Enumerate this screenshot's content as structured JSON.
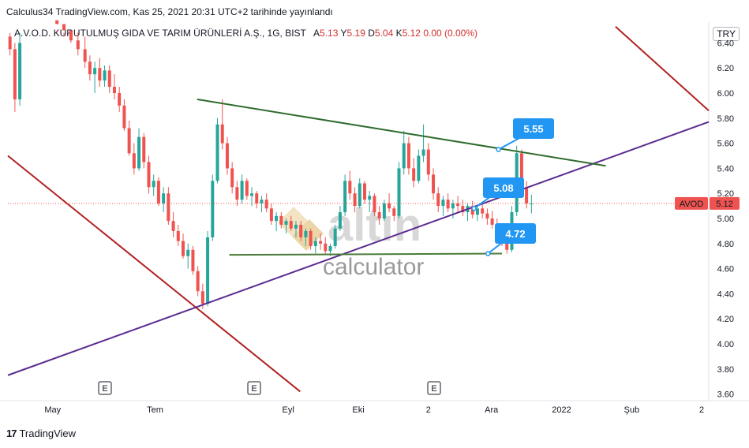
{
  "header": {
    "publisher": "Calculus34 TradingView.com, Kas 25, 2021 20:31 UTC+2 tarihinde yayınlandı",
    "symbol_title": "A.V.O.D. KURUTULMUŞ GIDA VE TARIM ÜRÜNLERİ A.Ş., 1G, BIST",
    "ohlc": {
      "a_label": "A",
      "a": "5.13",
      "y_label": "Y",
      "y": "5.19",
      "d_label": "D",
      "d": "5.04",
      "k_label": "K",
      "k": "5.12",
      "change": "0.00 (0.00%)"
    },
    "currency": "TRY"
  },
  "footer": {
    "logo": "17",
    "brand": "TradingView"
  },
  "watermark": {
    "brand": "altın",
    "sub": "calculator"
  },
  "chart_data": {
    "type": "candlestick",
    "ylim": [
      3.55,
      6.48
    ],
    "y_ticks": [
      "6.40",
      "6.20",
      "6.00",
      "5.80",
      "5.60",
      "5.40",
      "5.20",
      "5.00",
      "4.80",
      "4.60",
      "4.40",
      "4.20",
      "4.00",
      "3.80",
      "3.60"
    ],
    "x_ticks": [
      {
        "label": "May",
        "x": 0.02
      },
      {
        "label": "Tem",
        "x": 0.21
      },
      {
        "label": "Eyl",
        "x": 0.4
      },
      {
        "label": "Eki",
        "x": 0.5
      },
      {
        "label": "2",
        "x": 0.6
      },
      {
        "label": "Ara",
        "x": 0.69
      },
      {
        "label": "2022",
        "x": 0.79
      },
      {
        "label": "Şub",
        "x": 0.89
      },
      {
        "label": "2",
        "x": 0.99
      }
    ],
    "last_price": {
      "symbol": "AVOD",
      "value": "5.12"
    },
    "callouts": [
      "5.55",
      "5.08",
      "4.72"
    ],
    "events": [
      "E",
      "E",
      "E"
    ],
    "colors": {
      "up": "#26a69a",
      "down": "#ef5350",
      "resistance": "#2e6b2e",
      "support_up": "#5b2d90",
      "downtrend": "#b22222",
      "support_flat": "#4a7c3a",
      "callout": "#2196f3"
    },
    "grid": false,
    "candles": [
      [
        0.003,
        6.45,
        6.52,
        6.3,
        6.35
      ],
      [
        0.01,
        6.35,
        6.4,
        5.85,
        5.95
      ],
      [
        0.017,
        5.95,
        6.6,
        5.9,
        6.4
      ],
      [
        0.07,
        6.6,
        6.7,
        6.5,
        6.55
      ],
      [
        0.08,
        6.55,
        6.6,
        6.45,
        6.5
      ],
      [
        0.09,
        6.5,
        6.55,
        6.4,
        6.42
      ],
      [
        0.1,
        6.42,
        6.5,
        6.3,
        6.35
      ],
      [
        0.11,
        6.35,
        6.45,
        6.2,
        6.25
      ],
      [
        0.117,
        6.25,
        6.3,
        6.1,
        6.15
      ],
      [
        0.124,
        6.15,
        6.25,
        6.0,
        6.2
      ],
      [
        0.131,
        6.2,
        6.28,
        6.05,
        6.1
      ],
      [
        0.138,
        6.1,
        6.22,
        6.05,
        6.18
      ],
      [
        0.145,
        6.18,
        6.22,
        6.0,
        6.05
      ],
      [
        0.152,
        6.05,
        6.15,
        5.95,
        6.0
      ],
      [
        0.159,
        6.0,
        6.05,
        5.85,
        5.9
      ],
      [
        0.166,
        5.9,
        5.95,
        5.7,
        5.72
      ],
      [
        0.173,
        5.72,
        5.78,
        5.5,
        5.52
      ],
      [
        0.18,
        5.52,
        5.6,
        5.35,
        5.4
      ],
      [
        0.187,
        5.4,
        5.72,
        5.38,
        5.65
      ],
      [
        0.194,
        5.65,
        5.68,
        5.4,
        5.45
      ],
      [
        0.201,
        5.45,
        5.5,
        5.2,
        5.25
      ],
      [
        0.208,
        5.25,
        5.35,
        5.18,
        5.3
      ],
      [
        0.215,
        5.3,
        5.33,
        5.1,
        5.12
      ],
      [
        0.222,
        5.12,
        5.25,
        5.05,
        5.2
      ],
      [
        0.229,
        5.2,
        5.25,
        4.95,
        4.98
      ],
      [
        0.236,
        4.98,
        5.05,
        4.85,
        4.9
      ],
      [
        0.243,
        4.9,
        4.95,
        4.78,
        4.82
      ],
      [
        0.25,
        4.82,
        4.88,
        4.68,
        4.7
      ],
      [
        0.257,
        4.7,
        4.8,
        4.6,
        4.75
      ],
      [
        0.264,
        4.75,
        4.78,
        4.55,
        4.58
      ],
      [
        0.271,
        4.58,
        4.62,
        4.38,
        4.42
      ],
      [
        0.278,
        4.42,
        4.48,
        4.28,
        4.32
      ],
      [
        0.285,
        4.32,
        4.9,
        4.3,
        4.85
      ],
      [
        0.292,
        4.85,
        5.35,
        4.82,
        5.3
      ],
      [
        0.299,
        5.3,
        5.8,
        5.28,
        5.75
      ],
      [
        0.306,
        5.75,
        5.95,
        5.55,
        5.6
      ],
      [
        0.313,
        5.6,
        5.65,
        5.35,
        5.4
      ],
      [
        0.32,
        5.4,
        5.45,
        5.2,
        5.25
      ],
      [
        0.327,
        5.25,
        5.3,
        5.1,
        5.15
      ],
      [
        0.334,
        5.15,
        5.35,
        5.12,
        5.3
      ],
      [
        0.341,
        5.3,
        5.32,
        5.15,
        5.18
      ],
      [
        0.348,
        5.18,
        5.25,
        5.1,
        5.2
      ],
      [
        0.355,
        5.2,
        5.22,
        5.08,
        5.12
      ],
      [
        0.362,
        5.12,
        5.18,
        5.05,
        5.15
      ],
      [
        0.369,
        5.15,
        5.2,
        5.05,
        5.08
      ],
      [
        0.376,
        5.08,
        5.12,
        4.95,
        4.98
      ],
      [
        0.383,
        4.98,
        5.05,
        4.9,
        5.02
      ],
      [
        0.39,
        5.02,
        5.05,
        4.92,
        4.95
      ],
      [
        0.397,
        4.95,
        5.0,
        4.88,
        4.98
      ],
      [
        0.404,
        4.98,
        5.02,
        4.9,
        4.92
      ],
      [
        0.411,
        4.92,
        4.98,
        4.85,
        4.95
      ],
      [
        0.418,
        4.95,
        4.98,
        4.82,
        4.85
      ],
      [
        0.425,
        4.85,
        4.92,
        4.78,
        4.9
      ],
      [
        0.432,
        4.9,
        4.92,
        4.75,
        4.78
      ],
      [
        0.439,
        4.78,
        4.85,
        4.72,
        4.82
      ],
      [
        0.446,
        4.82,
        4.88,
        4.75,
        4.8
      ],
      [
        0.453,
        4.8,
        4.85,
        4.72,
        4.74
      ],
      [
        0.46,
        4.74,
        4.8,
        4.7,
        4.78
      ],
      [
        0.467,
        4.78,
        4.95,
        4.76,
        4.92
      ],
      [
        0.474,
        4.92,
        5.1,
        4.9,
        5.05
      ],
      [
        0.481,
        5.05,
        5.35,
        5.02,
        5.3
      ],
      [
        0.488,
        5.3,
        5.38,
        5.15,
        5.2
      ],
      [
        0.495,
        5.2,
        5.25,
        5.05,
        5.1
      ],
      [
        0.502,
        5.1,
        5.32,
        5.08,
        5.28
      ],
      [
        0.509,
        5.28,
        5.3,
        5.12,
        5.15
      ],
      [
        0.516,
        5.15,
        5.22,
        5.05,
        5.18
      ],
      [
        0.523,
        5.18,
        5.2,
        5.02,
        5.05
      ],
      [
        0.53,
        5.05,
        5.1,
        4.95,
        5.0
      ],
      [
        0.537,
        5.0,
        5.15,
        4.98,
        5.12
      ],
      [
        0.544,
        5.12,
        5.2,
        5.05,
        5.08
      ],
      [
        0.551,
        5.08,
        5.1,
        4.98,
        5.02
      ],
      [
        0.558,
        5.02,
        5.45,
        5.0,
        5.4
      ],
      [
        0.565,
        5.4,
        5.7,
        5.35,
        5.6
      ],
      [
        0.572,
        5.6,
        5.65,
        5.35,
        5.4
      ],
      [
        0.579,
        5.4,
        5.48,
        5.25,
        5.3
      ],
      [
        0.586,
        5.3,
        5.55,
        5.28,
        5.5
      ],
      [
        0.593,
        5.5,
        5.75,
        5.45,
        5.55
      ],
      [
        0.6,
        5.55,
        5.6,
        5.3,
        5.35
      ],
      [
        0.607,
        5.35,
        5.4,
        5.15,
        5.2
      ],
      [
        0.614,
        5.2,
        5.25,
        5.05,
        5.1
      ],
      [
        0.621,
        5.1,
        5.18,
        5.02,
        5.15
      ],
      [
        0.628,
        5.15,
        5.2,
        5.05,
        5.08
      ],
      [
        0.635,
        5.08,
        5.15,
        5.0,
        5.12
      ],
      [
        0.642,
        5.12,
        5.18,
        5.05,
        5.1
      ],
      [
        0.649,
        5.1,
        5.15,
        5.02,
        5.05
      ],
      [
        0.656,
        5.05,
        5.12,
        4.98,
        5.1
      ],
      [
        0.663,
        5.1,
        5.14,
        5.0,
        5.03
      ],
      [
        0.67,
        5.03,
        5.1,
        4.98,
        5.08
      ],
      [
        0.677,
        5.08,
        5.12,
        5.0,
        5.04
      ],
      [
        0.684,
        5.04,
        5.08,
        4.95,
        5.0
      ],
      [
        0.691,
        5.0,
        5.06,
        4.92,
        4.95
      ],
      [
        0.698,
        4.95,
        5.0,
        4.85,
        4.88
      ],
      [
        0.705,
        4.88,
        4.92,
        4.78,
        4.8
      ],
      [
        0.712,
        4.8,
        4.85,
        4.72,
        4.75
      ],
      [
        0.719,
        4.75,
        5.1,
        4.73,
        5.05
      ],
      [
        0.726,
        5.05,
        5.58,
        5.02,
        5.52
      ],
      [
        0.733,
        5.52,
        5.55,
        5.2,
        5.25
      ],
      [
        0.74,
        5.25,
        5.3,
        5.08,
        5.12
      ],
      [
        0.747,
        5.12,
        5.19,
        5.04,
        5.12
      ]
    ]
  }
}
